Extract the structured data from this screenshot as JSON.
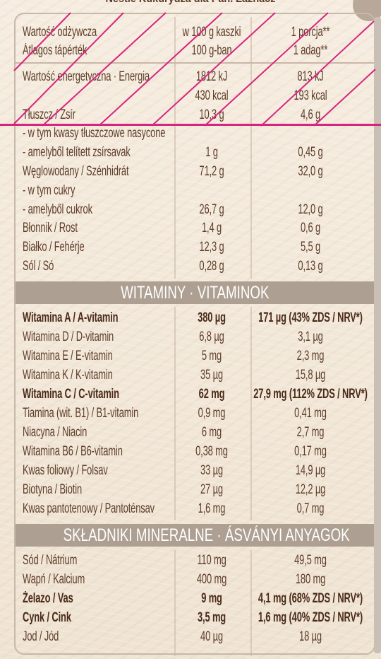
{
  "top_title": "Nestlé Kukurydza dla Pań. Zaznacz",
  "header": {
    "col1_line1": "Wartość odżywcza",
    "col1_line2": "Átlagos tápérték",
    "col2_line1": "w 100 g kaszki",
    "col2_line2": "100 g-ban",
    "col3_line1": "1 porcja**",
    "col3_line2": "1 adag**"
  },
  "nutrition_rows": [
    {
      "label": "Wartość energetyczna · Energia",
      "v100": "1812 kJ",
      "portion": "813 kJ",
      "bold": false
    },
    {
      "label": "",
      "v100": "430 kcal",
      "portion": "193 kcal",
      "bold": false
    },
    {
      "label": "Tłuszcz / Zsír",
      "v100": "10,3 g",
      "portion": "4,6 g",
      "bold": false
    },
    {
      "label": "- w tym kwasy tłuszczowe nasycone",
      "v100": "",
      "portion": "",
      "bold": false
    },
    {
      "label": "- amelyből telített zsírsavak",
      "v100": "1 g",
      "portion": "0,45 g",
      "bold": false
    },
    {
      "label": "Węglowodany / Szénhidrát",
      "v100": "71,2 g",
      "portion": "32,0 g",
      "bold": false
    },
    {
      "label": "- w tym cukry",
      "v100": "",
      "portion": "",
      "bold": false
    },
    {
      "label": "- amelyből cukrok",
      "v100": "26,7 g",
      "portion": "12,0 g",
      "bold": false
    },
    {
      "label": "Błonnik / Rost",
      "v100": "1,4 g",
      "portion": "0,6 g",
      "bold": false
    },
    {
      "label": "Białko / Fehérje",
      "v100": "12,3 g",
      "portion": "5,5 g",
      "bold": false
    },
    {
      "label": "Sól / Só",
      "v100": "0,28 g",
      "portion": "0,13 g",
      "bold": false
    }
  ],
  "vitamins_header": "WITAMINY · VITAMINOK",
  "vitamin_rows": [
    {
      "label": "Witamina A / A-vitamin",
      "v100": "380 µg",
      "portion": "171 µg (43% ZDS / NRV*)",
      "bold": true
    },
    {
      "label": "Witamina D / D-vitamin",
      "v100": "6,8 µg",
      "portion": "3,1 µg",
      "bold": false
    },
    {
      "label": "Witamina E / E-vitamin",
      "v100": "5 mg",
      "portion": "2,3 mg",
      "bold": false
    },
    {
      "label": "Witamina K / K-vitamin",
      "v100": "35 µg",
      "portion": "15,8 µg",
      "bold": false
    },
    {
      "label": "Witamina C / C-vitamin",
      "v100": "62 mg",
      "portion": "27,9 mg (112% ZDS / NRV*)",
      "bold": true
    },
    {
      "label": "Tiamina (wit. B1) / B1-vitamin",
      "v100": "0,9 mg",
      "portion": "0,41 mg",
      "bold": false
    },
    {
      "label": "Niacyna / Niacin",
      "v100": "6 mg",
      "portion": "2,7 mg",
      "bold": false
    },
    {
      "label": "Witamina B6 / B6-vitamin",
      "v100": "0,38 mg",
      "portion": "0,17 mg",
      "bold": false
    },
    {
      "label": "Kwas foliowy / Folsav",
      "v100": "33 µg",
      "portion": "14,9 µg",
      "bold": false
    },
    {
      "label": "Biotyna / Biotin",
      "v100": "27 µg",
      "portion": "12,2 µg",
      "bold": false
    },
    {
      "label": "Kwas pantotenowy / Pantoténsav",
      "v100": "1,6 mg",
      "portion": "0,7 mg",
      "bold": false
    }
  ],
  "minerals_header": "SKŁADNIKI MINERALNE · ÁSVÁNYI ANYAGOK",
  "mineral_rows": [
    {
      "label": "Sód / Nátrium",
      "v100": "110 mg",
      "portion": "49,5 mg",
      "bold": false
    },
    {
      "label": "Wapń / Kalcium",
      "v100": "400 mg",
      "portion": "180 mg",
      "bold": false
    },
    {
      "label": "Żelazo / Vas",
      "v100": "9 mg",
      "portion": "4,1 mg (68% ZDS / NRV*)",
      "bold": true
    },
    {
      "label": "Cynk / Cink",
      "v100": "3,5 mg",
      "portion": "1,6 mg (40% ZDS / NRV*)",
      "bold": true
    },
    {
      "label": "Jod / Jód",
      "v100": "40 µg",
      "portion": "18 µg",
      "bold": false
    }
  ],
  "colors": {
    "text": "#5e3d2a",
    "band": "#ad9f91",
    "annotation": "#d6257e",
    "background": "#f3e9da"
  }
}
